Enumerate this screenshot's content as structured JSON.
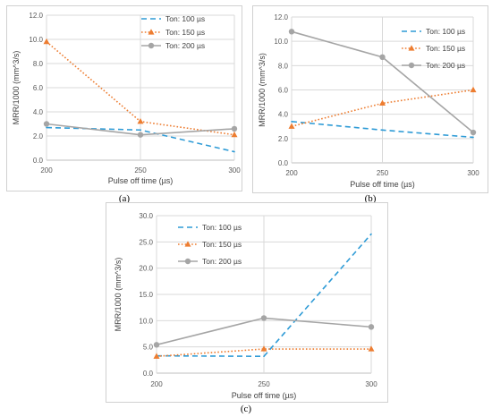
{
  "colors": {
    "ton_100": "#2e9bd6",
    "ton_150": "#ed7d31",
    "ton_200": "#a5a5a5",
    "grid": "#d9d9d9",
    "axis": "#bfbfbf"
  },
  "chart_data": [
    {
      "type": "line",
      "panel": "a",
      "caption": "(a)",
      "xlabel": "Pulse off time (µs)",
      "ylabel": "MRR/1000 (mm^3/s)",
      "x": [
        200,
        250,
        300
      ],
      "x_ticks": [
        "200",
        "250",
        "300"
      ],
      "ylim": [
        0,
        12
      ],
      "y_ticks": [
        "0.0",
        "2.0",
        "4.0",
        "6.0",
        "8.0",
        "10.0",
        "12.0"
      ],
      "legend_position": "top-right",
      "grid": true,
      "series": [
        {
          "name": "Ton: 100 µs",
          "values": [
            2.7,
            2.5,
            0.7
          ],
          "style": "dashed",
          "marker": "none",
          "color": "#2e9bd6"
        },
        {
          "name": "Ton: 150 µs",
          "values": [
            9.8,
            3.2,
            2.1
          ],
          "style": "dotted",
          "marker": "triangle",
          "color": "#ed7d31"
        },
        {
          "name": "Ton: 200 µs",
          "values": [
            3.0,
            2.1,
            2.6
          ],
          "style": "solid",
          "marker": "circle",
          "color": "#a5a5a5"
        }
      ]
    },
    {
      "type": "line",
      "panel": "b",
      "caption": "(b)",
      "xlabel": "Pulse off time (µs)",
      "ylabel": "MRR/1000 (mm^3/s)",
      "x": [
        200,
        250,
        300
      ],
      "x_ticks": [
        "200",
        "250",
        "300"
      ],
      "ylim": [
        0,
        12
      ],
      "y_ticks": [
        "0.0",
        "2.0",
        "4.0",
        "6.0",
        "8.0",
        "10.0",
        "12.0"
      ],
      "legend_position": "top-right",
      "grid": true,
      "series": [
        {
          "name": "Ton: 100 µs",
          "values": [
            3.4,
            2.7,
            2.1
          ],
          "style": "dashed",
          "marker": "none",
          "color": "#2e9bd6"
        },
        {
          "name": "Ton: 150 µs",
          "values": [
            3.0,
            4.9,
            6.0
          ],
          "style": "dotted",
          "marker": "triangle",
          "color": "#ed7d31"
        },
        {
          "name": "Ton: 200 µs",
          "values": [
            10.8,
            8.7,
            2.5
          ],
          "style": "solid",
          "marker": "circle",
          "color": "#a5a5a5"
        }
      ]
    },
    {
      "type": "line",
      "panel": "c",
      "caption": "(c)",
      "xlabel": "Pulse off time (µs)",
      "ylabel": "MRR/1000 (mm^3/s)",
      "x": [
        200,
        250,
        300
      ],
      "x_ticks": [
        "200",
        "250",
        "300"
      ],
      "ylim": [
        0,
        30
      ],
      "y_ticks": [
        "0.0",
        "5.0",
        "10.0",
        "15.0",
        "20.0",
        "25.0",
        "30.0"
      ],
      "legend_position": "top-left",
      "grid": true,
      "series": [
        {
          "name": "Ton: 100 µs",
          "values": [
            3.3,
            3.2,
            26.5
          ],
          "style": "dashed",
          "marker": "none",
          "color": "#2e9bd6"
        },
        {
          "name": "Ton: 150 µs",
          "values": [
            3.2,
            4.6,
            4.6
          ],
          "style": "dotted",
          "marker": "triangle",
          "color": "#ed7d31"
        },
        {
          "name": "Ton: 200 µs",
          "values": [
            5.4,
            10.5,
            8.8
          ],
          "style": "solid",
          "marker": "circle",
          "color": "#a5a5a5"
        }
      ]
    }
  ]
}
